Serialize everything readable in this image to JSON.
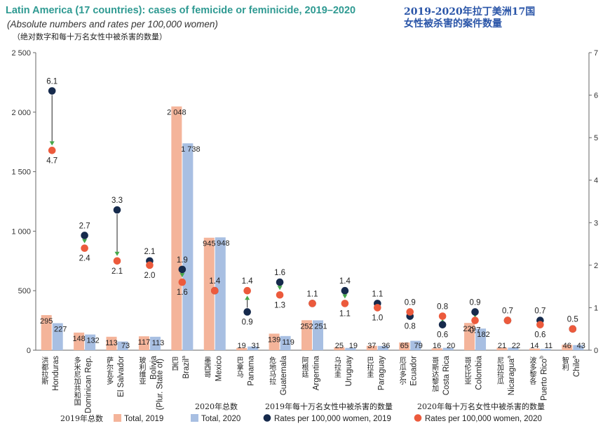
{
  "chart_data": {
    "type": "bar",
    "title": "Latin America (17 countries): cases of femicide or feminicide, 2019–2020",
    "subtitle": "(Absolute numbers and rates per 100,000 women)",
    "title_zh": "2019-2020年拉丁美洲17国",
    "title_zh_2": "女性被杀害的案件数量",
    "subtitle_zh": "（绝对数字和每十万名女性中被杀害的数量）",
    "y_left": {
      "min": 0,
      "max": 2500,
      "ticks": [
        0,
        500,
        1000,
        1500,
        2000,
        2500
      ],
      "tick_labels": [
        "0",
        "500",
        "1 000",
        "1 500",
        "2 000",
        "2 500"
      ]
    },
    "y_right": {
      "min": 0,
      "max": 7,
      "ticks": [
        0,
        1,
        2,
        3,
        4,
        5,
        6,
        7
      ],
      "tick_labels": [
        "0",
        "1",
        "2",
        "3",
        "4",
        "5",
        "6",
        "7"
      ]
    },
    "colors": {
      "total_2019": "#f4b49a",
      "total_2020": "#a8bfe2",
      "rate_2019": "#162a4c",
      "rate_2020": "#ec5a3c",
      "arrow": "#45a84a"
    },
    "countries": [
      {
        "en": "Honduras",
        "sup": "",
        "en2": "",
        "zh": "洪都拉斯",
        "t2019": 295,
        "t2019_label": "295",
        "t2020": 227,
        "t2020_label": "227",
        "r2019": 6.1,
        "r2019_label": "6.1",
        "r2020": 4.7,
        "r2020_label": "4.7"
      },
      {
        "en": "Dominican Rep.",
        "sup": "",
        "en2": "",
        "zh": "多米尼加共和国",
        "t2019": 148,
        "t2019_label": "148",
        "t2020": 132,
        "t2020_label": "132",
        "r2019": 2.7,
        "r2019_label": "2.7",
        "r2020": 2.4,
        "r2020_label": "2.4"
      },
      {
        "en": "El Salvador",
        "sup": "",
        "en2": "",
        "zh": "萨尔瓦多",
        "t2019": 113,
        "t2019_label": "113",
        "t2020": 73,
        "t2020_label": "73",
        "r2019": 3.3,
        "r2019_label": "3.3",
        "r2020": 2.1,
        "r2020_label": "2.1"
      },
      {
        "en": "Bolivia",
        "sup": "",
        "en2": "(Plur. State of)",
        "zh": "玻利维亚",
        "t2019": 117,
        "t2019_label": "117",
        "t2020": 113,
        "t2020_label": "113",
        "r2019": 2.1,
        "r2019_label": "2.1",
        "r2020": 2.0,
        "r2020_label": "2.0"
      },
      {
        "en": "Brazil",
        "sup": "a",
        "en2": "",
        "zh": "巴西",
        "t2019": 2048,
        "t2019_label": "2 048",
        "t2020": 1738,
        "t2020_label": "1 738",
        "r2019": 1.9,
        "r2019_label": "1.9",
        "r2020": 1.6,
        "r2020_label": "1.6"
      },
      {
        "en": "Mexico",
        "sup": "",
        "en2": "",
        "zh": "墨西哥",
        "t2019": 945,
        "t2019_label": "945",
        "t2020": 948,
        "t2020_label": "948",
        "r2019": 1.4,
        "r2019_label": "",
        "r2020": 1.4,
        "r2020_label": "1.4"
      },
      {
        "en": "Panama",
        "sup": "",
        "en2": "",
        "zh": "巴拿马",
        "t2019": 19,
        "t2019_label": "19",
        "t2020": 31,
        "t2020_label": "31",
        "r2019": 0.9,
        "r2019_label": "0.9",
        "r2020": 1.4,
        "r2020_label": "1.4"
      },
      {
        "en": "Guatemala",
        "sup": "",
        "en2": "",
        "zh": "危地马拉",
        "t2019": 139,
        "t2019_label": "139",
        "t2020": 119,
        "t2020_label": "119",
        "r2019": 1.6,
        "r2019_label": "1.6",
        "r2020": 1.3,
        "r2020_label": "1.3"
      },
      {
        "en": "Argentina",
        "sup": "",
        "en2": "",
        "zh": "阿根廷",
        "t2019": 252,
        "t2019_label": "252",
        "t2020": 251,
        "t2020_label": "251",
        "r2019": 1.1,
        "r2019_label": "",
        "r2020": 1.1,
        "r2020_label": "1.1"
      },
      {
        "en": "Uruguay",
        "sup": "",
        "en2": "",
        "zh": "乌拉圭",
        "t2019": 25,
        "t2019_label": "25",
        "t2020": 19,
        "t2020_label": "19",
        "r2019": 1.4,
        "r2019_label": "1.4",
        "r2020": 1.1,
        "r2020_label": "1.1"
      },
      {
        "en": "Paraguay",
        "sup": "",
        "en2": "",
        "zh": "巴拉圭",
        "t2019": 37,
        "t2019_label": "37",
        "t2020": 36,
        "t2020_label": "36",
        "r2019": 1.1,
        "r2019_label": "1.1",
        "r2020": 1.0,
        "r2020_label": "1.0"
      },
      {
        "en": "Ecuador",
        "sup": "",
        "en2": "",
        "zh": "厄瓜多尔",
        "t2019": 65,
        "t2019_label": "65",
        "t2020": 79,
        "t2020_label": "79",
        "r2019": 0.8,
        "r2019_label": "0.8",
        "r2020": 0.9,
        "r2020_label": "0.9"
      },
      {
        "en": "Costa Rica",
        "sup": "",
        "en2": "",
        "zh": "哥斯达黎加",
        "t2019": 16,
        "t2019_label": "16",
        "t2020": 20,
        "t2020_label": "20",
        "r2019": 0.6,
        "r2019_label": "0.6",
        "r2020": 0.8,
        "r2020_label": "0.8"
      },
      {
        "en": "Colombia",
        "sup": "",
        "en2": "",
        "zh": "哥伦比亚",
        "t2019": 229,
        "t2019_label": "229",
        "t2020": 182,
        "t2020_label": "182",
        "r2019": 0.9,
        "r2019_label": "0.9",
        "r2020": 0.7,
        "r2020_label": "0.7"
      },
      {
        "en": "Nicaragua",
        "sup": "a",
        "en2": "",
        "zh": "尼加拉瓜",
        "t2019": 21,
        "t2019_label": "21",
        "t2020": 22,
        "t2020_label": "22",
        "r2019": 0.7,
        "r2019_label": "",
        "r2020": 0.7,
        "r2020_label": "0.7"
      },
      {
        "en": "Puerto Rico",
        "sup": "b",
        "en2": "",
        "zh": "波多黎各",
        "t2019": 14,
        "t2019_label": "14",
        "t2020": 11,
        "t2020_label": "11",
        "r2019": 0.7,
        "r2019_label": "0.7",
        "r2020": 0.6,
        "r2020_label": "0.6"
      },
      {
        "en": "Chile",
        "sup": "a",
        "en2": "",
        "zh": "智利",
        "t2019": 46,
        "t2019_label": "46",
        "t2020": 43,
        "t2020_label": "43",
        "r2019": 0.5,
        "r2019_label": "0.5",
        "r2020": 0.5,
        "r2020_label": ""
      }
    ],
    "legend": [
      {
        "key": "total_2019",
        "kind": "bar",
        "en": "Total, 2019",
        "zh": "2019年总数"
      },
      {
        "key": "total_2020",
        "kind": "bar",
        "en": "Total, 2020",
        "zh": "2020年总数"
      },
      {
        "key": "rate_2019",
        "kind": "dot",
        "en": "Rates per 100,000 women, 2019",
        "zh": "2019年每十万名女性中被杀害的数量"
      },
      {
        "key": "rate_2020",
        "kind": "dot",
        "en": "Rates per 100,000 women, 2020",
        "zh": "2020年每十万名女性中被杀害的数量"
      }
    ]
  }
}
